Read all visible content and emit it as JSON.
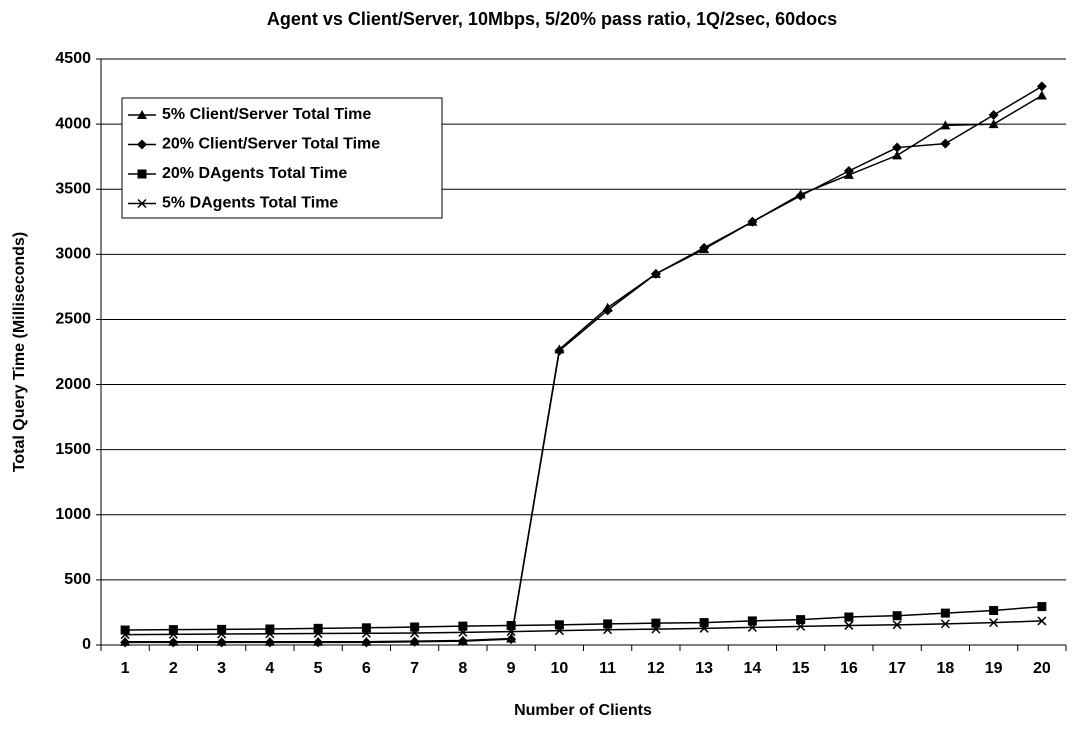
{
  "chart_data": {
    "type": "line",
    "title": "Agent vs Client/Server, 10Mbps, 5/20% pass ratio, 1Q/2sec, 60docs",
    "x_label": "Number of Clients",
    "y_label": "Total Query Time (Milliseconds)",
    "categories": [
      "1",
      "2",
      "3",
      "4",
      "5",
      "6",
      "7",
      "8",
      "9",
      "10",
      "11",
      "12",
      "13",
      "14",
      "15",
      "16",
      "17",
      "18",
      "19",
      "20"
    ],
    "series": [
      {
        "name": "5% Client/Server Total Time",
        "color": "#000000",
        "marker": "triangle",
        "values": [
          25,
          25,
          25,
          25,
          25,
          25,
          30,
          35,
          50,
          2270,
          2590,
          2850,
          3040,
          3250,
          3460,
          3610,
          3760,
          3990,
          4000,
          4220
        ]
      },
      {
        "name": "20% Client/Server Total Time",
        "color": "#000000",
        "marker": "diamond",
        "values": [
          20,
          20,
          20,
          20,
          20,
          20,
          25,
          30,
          45,
          2260,
          2570,
          2850,
          3050,
          3250,
          3450,
          3640,
          3820,
          3850,
          4070,
          4290
        ]
      },
      {
        "name": "20% DAgents Total Time",
        "color": "#000000",
        "marker": "square",
        "values": [
          115,
          118,
          120,
          123,
          128,
          132,
          138,
          145,
          150,
          155,
          162,
          168,
          172,
          185,
          195,
          215,
          225,
          245,
          265,
          295
        ]
      },
      {
        "name": "5% DAgents Total Time",
        "color": "#000000",
        "marker": "x",
        "values": [
          80,
          82,
          84,
          86,
          88,
          90,
          92,
          97,
          103,
          110,
          117,
          122,
          128,
          135,
          143,
          150,
          155,
          162,
          172,
          185
        ]
      }
    ],
    "ylim": [
      0,
      4500
    ],
    "yticks": [
      0,
      500,
      1000,
      1500,
      2000,
      2500,
      3000,
      3500,
      4000,
      4500
    ],
    "grid": true,
    "legend": "upper left"
  }
}
